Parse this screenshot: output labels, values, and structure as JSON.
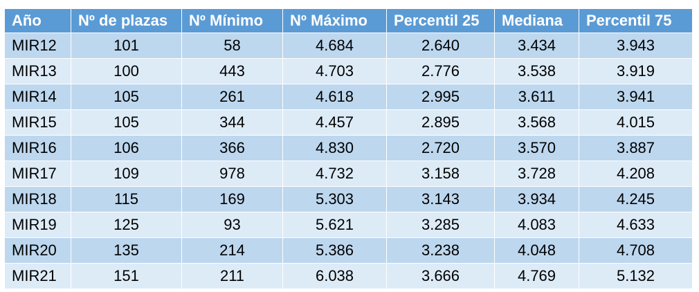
{
  "table": {
    "headers": [
      "Año",
      "Nº de plazas",
      "Nº Mínimo",
      "Nº Máximo",
      "Percentil 25",
      "Mediana",
      "Percentil 75"
    ],
    "rows": [
      [
        "MIR12",
        "101",
        "58",
        "4.684",
        "2.640",
        "3.434",
        "3.943"
      ],
      [
        "MIR13",
        "100",
        "443",
        "4.703",
        "2.776",
        "3.538",
        "3.919"
      ],
      [
        "MIR14",
        "105",
        "261",
        "4.618",
        "2.995",
        "3.611",
        "3.941"
      ],
      [
        "MIR15",
        "105",
        "344",
        "4.457",
        "2.895",
        "3.568",
        "4.015"
      ],
      [
        "MIR16",
        "106",
        "366",
        "4.830",
        "2.720",
        "3.570",
        "3.887"
      ],
      [
        "MIR17",
        "109",
        "978",
        "4.732",
        "3.158",
        "3.728",
        "4.208"
      ],
      [
        "MIR18",
        "115",
        "169",
        "5.303",
        "3.143",
        "3.934",
        "4.245"
      ],
      [
        "MIR19",
        "125",
        "93",
        "5.621",
        "3.285",
        "4.083",
        "4.633"
      ],
      [
        "MIR20",
        "135",
        "214",
        "5.386",
        "3.238",
        "4.048",
        "4.708"
      ],
      [
        "MIR21",
        "151",
        "211",
        "6.038",
        "3.666",
        "4.769",
        "5.132"
      ]
    ]
  },
  "colors": {
    "header_bg": "#5b9bd5",
    "header_text": "#ffffff",
    "row_odd": "#bdd7ee",
    "row_even": "#ddebf7"
  }
}
